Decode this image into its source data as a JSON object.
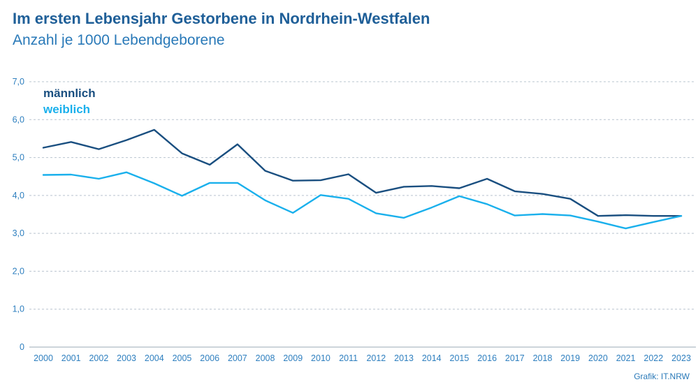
{
  "header": {
    "title": "Im ersten Lebensjahr Gestorbene in Nordrhein-Westfalen",
    "subtitle": "Anzahl je 1000 Lebendgeborene"
  },
  "footer": {
    "source": "Grafik: IT.NRW"
  },
  "chart_data": {
    "type": "line",
    "title": "Im ersten Lebensjahr Gestorbene in Nordrhein-Westfalen",
    "subtitle": "Anzahl je 1000 Lebendgeborene",
    "xlabel": "",
    "ylabel": "",
    "ylim": [
      0,
      7.0
    ],
    "grid": true,
    "legend_position": "top-left",
    "y_ticks": [
      "0",
      "1,0",
      "2,0",
      "3,0",
      "4,0",
      "5,0",
      "6,0",
      "7,0"
    ],
    "y_tick_values": [
      0,
      1,
      2,
      3,
      4,
      5,
      6,
      7
    ],
    "categories": [
      "2000",
      "2001",
      "2002",
      "2003",
      "2004",
      "2005",
      "2006",
      "2007",
      "2008",
      "2009",
      "2010",
      "2011",
      "2012",
      "2013",
      "2014",
      "2015",
      "2016",
      "2017",
      "2018",
      "2019",
      "2020",
      "2021",
      "2022",
      "2023"
    ],
    "series": [
      {
        "name": "männlich",
        "color": "#1a4f80",
        "values": [
          5.26,
          5.41,
          5.22,
          5.46,
          5.73,
          5.11,
          4.81,
          5.35,
          4.65,
          4.39,
          4.4,
          4.56,
          4.07,
          4.23,
          4.25,
          4.19,
          4.44,
          4.11,
          4.04,
          3.91,
          3.46,
          3.48,
          3.46,
          3.46
        ]
      },
      {
        "name": "weiblich",
        "color": "#1ab0ec",
        "values": [
          4.54,
          4.55,
          4.44,
          4.61,
          4.32,
          3.99,
          4.33,
          4.33,
          3.87,
          3.54,
          4.01,
          3.91,
          3.53,
          3.41,
          3.68,
          3.98,
          3.77,
          3.47,
          3.51,
          3.47,
          3.31,
          3.13,
          3.3,
          3.46
        ]
      }
    ]
  }
}
